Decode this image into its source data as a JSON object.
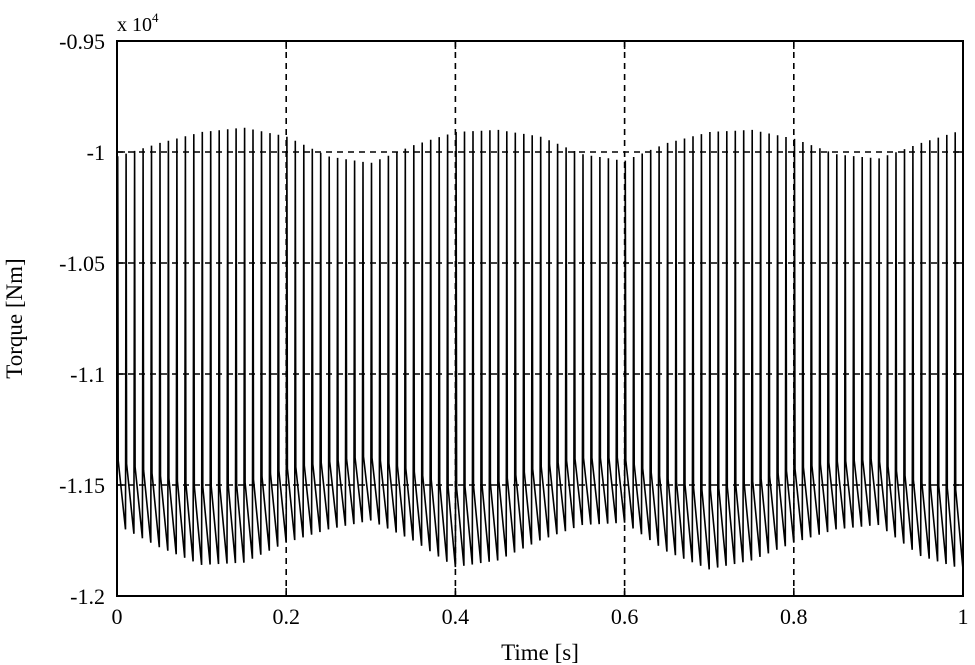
{
  "chart_data": {
    "type": "line",
    "title": "",
    "xlabel": "Time [s]",
    "ylabel": "Torque [Nm]",
    "y_multiplier_base": "x 10",
    "y_multiplier_exp": "4",
    "xlim": [
      0,
      1
    ],
    "ylim": [
      -1.2,
      -0.95
    ],
    "x_ticks": [
      0,
      0.2,
      0.4,
      0.6,
      0.8,
      1
    ],
    "x_tick_labels": [
      "0",
      "0.2",
      "0.4",
      "0.6",
      "0.8",
      "1"
    ],
    "y_ticks": [
      -0.95,
      -1,
      -1.05,
      -1.1,
      -1.15,
      -1.2
    ],
    "y_tick_labels": [
      "-0.95",
      "-1",
      "-1.05",
      "-1.1",
      "-1.15",
      "-1.2"
    ],
    "grid": true,
    "grid_style": "dashed",
    "line_color": "#000000",
    "series": [
      {
        "ripple_frequency_hz": 100,
        "envelope_period_s": 0.3,
        "lower_envelope": {
          "x": [
            0,
            0.05,
            0.1,
            0.15,
            0.2,
            0.25,
            0.3,
            0.35,
            0.4,
            0.45,
            0.5,
            0.55,
            0.6,
            0.65,
            0.7,
            0.75,
            0.8,
            0.85,
            0.9,
            0.95,
            1
          ],
          "y": [
            -1.168,
            -1.178,
            -1.186,
            -1.185,
            -1.176,
            -1.17,
            -1.166,
            -1.175,
            -1.187,
            -1.184,
            -1.175,
            -1.168,
            -1.167,
            -1.18,
            -1.188,
            -1.184,
            -1.176,
            -1.17,
            -1.168,
            -1.182,
            -1.188
          ]
        },
        "upper_envelope": {
          "x": [
            0,
            0.05,
            0.1,
            0.15,
            0.2,
            0.25,
            0.3,
            0.35,
            0.4,
            0.45,
            0.5,
            0.55,
            0.6,
            0.65,
            0.7,
            0.75,
            0.8,
            0.85,
            0.9,
            0.95,
            1
          ],
          "y": [
            -1.002,
            -0.996,
            -0.991,
            -0.989,
            -0.993,
            -1.002,
            -1.005,
            -0.997,
            -0.991,
            -0.99,
            -0.993,
            -1.001,
            -1.004,
            -0.996,
            -0.991,
            -0.99,
            -0.994,
            -1.001,
            -1.003,
            -0.996,
            -0.99
          ]
        }
      }
    ]
  }
}
